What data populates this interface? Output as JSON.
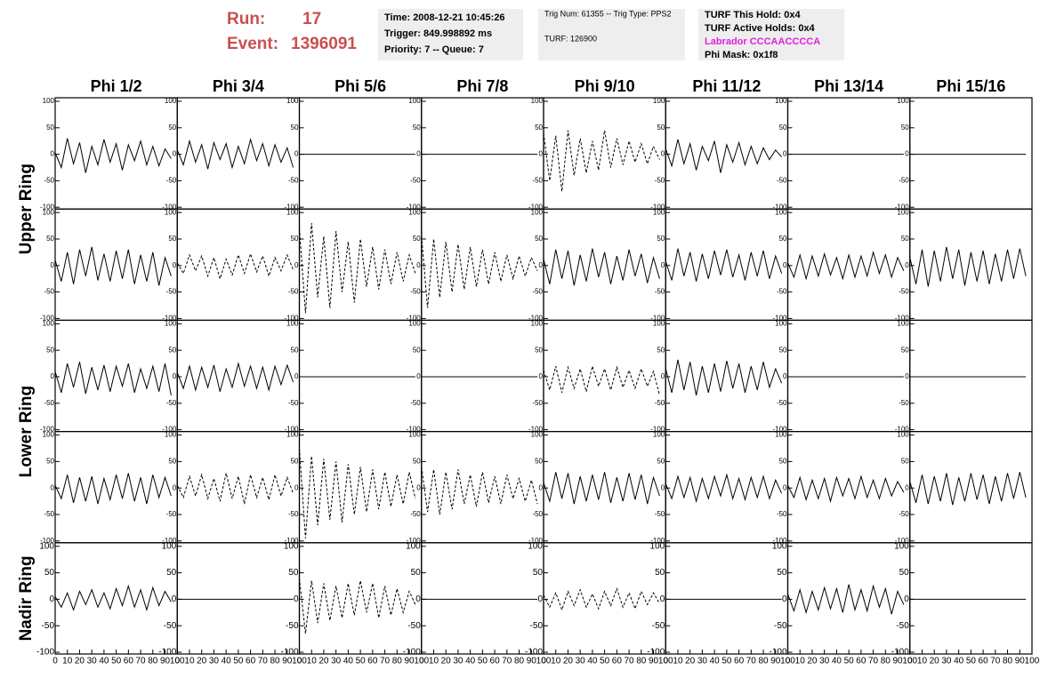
{
  "header": {
    "run_label": "Run:",
    "run": 17,
    "event_label": "Event:",
    "event": 1396091
  },
  "time_box": [
    "Time: 2008-12-21 10:45:26",
    "Trigger: 849.998892 ms",
    "Priority: 7 -- Queue: 7"
  ],
  "trig_box": [
    "Trig Num: 61355 -- Trig Type: PPS2",
    "TURF: 126900"
  ],
  "turf_box": [
    {
      "text": "TURF This Hold: 0x4",
      "color": "#000000"
    },
    {
      "text": "TURF Active Holds: 0x4",
      "color": "#000000"
    },
    {
      "text": "Labrador CCCAACCCCA",
      "color": "#e020e0"
    },
    {
      "text": "Phi Mask: 0x1f8",
      "color": "#000000"
    }
  ],
  "chart_data": {
    "type": "line",
    "columns": [
      "Phi 1/2",
      "Phi 3/4",
      "Phi 5/6",
      "Phi 7/8",
      "Phi 9/10",
      "Phi 11/12",
      "Phi 13/14",
      "Phi 15/16"
    ],
    "ring_labels": [
      "Upper Ring",
      "Lower Ring",
      "Nadir Ring"
    ],
    "xlim": [
      0,
      100
    ],
    "ylim": [
      -100,
      100
    ],
    "xticks": [
      0,
      10,
      20,
      30,
      40,
      50,
      60,
      70,
      80,
      90,
      100
    ],
    "yticks": [
      -100,
      -50,
      0,
      50,
      100
    ],
    "x": [
      0,
      5,
      10,
      15,
      20,
      25,
      30,
      35,
      40,
      45,
      50,
      55,
      60,
      65,
      70,
      75,
      80,
      85,
      90,
      95
    ],
    "panels": [
      [
        {
          "style": "solid",
          "values": [
            3,
            -25,
            30,
            -18,
            22,
            -35,
            15,
            -20,
            28,
            -15,
            20,
            -30,
            18,
            -12,
            25,
            -20,
            15,
            -22,
            10,
            -8
          ]
        },
        {
          "style": "solid",
          "values": [
            8,
            -20,
            25,
            -15,
            18,
            -28,
            22,
            -10,
            20,
            -25,
            15,
            -18,
            28,
            -12,
            20,
            -22,
            18,
            -15,
            12,
            -25
          ]
        },
        {
          "style": "solid",
          "values": [
            0,
            0,
            0,
            0,
            0,
            0,
            0,
            0,
            0,
            0,
            0,
            0,
            0,
            0,
            0,
            0,
            0,
            0,
            0,
            0
          ]
        },
        {
          "style": "solid",
          "values": [
            0,
            0,
            0,
            0,
            0,
            0,
            0,
            0,
            0,
            0,
            0,
            0,
            0,
            0,
            0,
            0,
            0,
            0,
            0,
            0
          ]
        },
        {
          "style": "dashed",
          "values": [
            40,
            -50,
            35,
            -70,
            45,
            -40,
            30,
            -35,
            25,
            -30,
            45,
            -25,
            30,
            -20,
            25,
            -15,
            20,
            -18,
            15,
            -10
          ]
        },
        {
          "style": "solid",
          "values": [
            10,
            -22,
            28,
            -18,
            20,
            -30,
            15,
            -12,
            25,
            -35,
            18,
            -15,
            22,
            -20,
            15,
            -18,
            12,
            -10,
            8,
            -5
          ]
        },
        {
          "style": "solid",
          "values": [
            0,
            0,
            0,
            0,
            0,
            0,
            0,
            0,
            0,
            0,
            0,
            0,
            0,
            0,
            0,
            0,
            0,
            0,
            0,
            0
          ]
        },
        {
          "style": "solid",
          "values": [
            0,
            0,
            0,
            0,
            0,
            0,
            0,
            0,
            0,
            0,
            0,
            0,
            0,
            0,
            0,
            0,
            0,
            0,
            0,
            0
          ]
        }
      ],
      [
        {
          "style": "solid",
          "values": [
            10,
            -30,
            25,
            -35,
            30,
            -20,
            35,
            -28,
            22,
            -30,
            28,
            -25,
            30,
            -35,
            20,
            -30,
            25,
            -38,
            15,
            -20
          ]
        },
        {
          "style": "dashed",
          "values": [
            5,
            -15,
            20,
            -10,
            18,
            -20,
            15,
            -25,
            12,
            -18,
            20,
            -15,
            22,
            -12,
            18,
            -20,
            15,
            -10,
            20,
            -8
          ]
        },
        {
          "style": "dashed",
          "values": [
            70,
            -90,
            80,
            -60,
            55,
            -80,
            65,
            -50,
            45,
            -70,
            50,
            -40,
            35,
            -45,
            30,
            -35,
            25,
            -30,
            20,
            -15
          ]
        },
        {
          "style": "dashed",
          "values": [
            55,
            -80,
            50,
            -60,
            45,
            -50,
            40,
            -45,
            35,
            -40,
            30,
            -35,
            25,
            -30,
            20,
            -25,
            18,
            -20,
            15,
            -10
          ]
        },
        {
          "style": "solid",
          "values": [
            12,
            -35,
            30,
            -25,
            28,
            -38,
            20,
            -30,
            32,
            -22,
            25,
            -35,
            18,
            -28,
            30,
            -20,
            22,
            -33,
            15,
            -25
          ]
        },
        {
          "style": "solid",
          "values": [
            8,
            -28,
            32,
            -20,
            25,
            -30,
            22,
            -25,
            28,
            -18,
            30,
            -22,
            20,
            -28,
            25,
            -20,
            28,
            -25,
            18,
            -15
          ]
        },
        {
          "style": "solid",
          "values": [
            5,
            -22,
            20,
            -25,
            18,
            -20,
            22,
            -18,
            15,
            -25,
            20,
            -22,
            18,
            -20,
            25,
            -15,
            20,
            -22,
            15,
            -10
          ]
        },
        {
          "style": "solid",
          "values": [
            15,
            -35,
            30,
            -40,
            28,
            -30,
            35,
            -25,
            30,
            -38,
            25,
            -30,
            28,
            -35,
            22,
            -30,
            30,
            -25,
            32,
            -20
          ]
        }
      ],
      [
        {
          "style": "solid",
          "values": [
            10,
            -30,
            25,
            -20,
            28,
            -32,
            18,
            -25,
            22,
            -28,
            20,
            -18,
            25,
            -30,
            15,
            -22,
            20,
            -28,
            25,
            -35
          ]
        },
        {
          "style": "solid",
          "values": [
            8,
            -22,
            20,
            -25,
            18,
            -20,
            22,
            -28,
            15,
            -20,
            25,
            -18,
            20,
            -22,
            18,
            -25,
            20,
            -15,
            22,
            -10
          ]
        },
        {
          "style": "solid",
          "values": [
            0,
            0,
            0,
            0,
            0,
            0,
            0,
            0,
            0,
            0,
            0,
            0,
            0,
            0,
            0,
            0,
            0,
            0,
            0,
            0
          ]
        },
        {
          "style": "solid",
          "values": [
            0,
            0,
            0,
            0,
            0,
            0,
            0,
            0,
            0,
            0,
            0,
            0,
            0,
            0,
            0,
            0,
            0,
            0,
            0,
            0
          ]
        },
        {
          "style": "dashed",
          "values": [
            12,
            -25,
            20,
            -30,
            18,
            -22,
            15,
            -28,
            20,
            -18,
            15,
            -25,
            18,
            -20,
            12,
            -22,
            15,
            -18,
            10,
            -35
          ]
        },
        {
          "style": "solid",
          "values": [
            15,
            -30,
            32,
            -25,
            28,
            -35,
            20,
            -30,
            25,
            -28,
            30,
            -22,
            25,
            -30,
            20,
            -25,
            28,
            -20,
            15,
            -12
          ]
        },
        {
          "style": "solid",
          "values": [
            0,
            0,
            0,
            0,
            0,
            0,
            0,
            0,
            0,
            0,
            0,
            0,
            0,
            0,
            0,
            0,
            0,
            0,
            0,
            0
          ]
        },
        {
          "style": "solid",
          "values": [
            0,
            0,
            0,
            0,
            0,
            0,
            0,
            0,
            0,
            0,
            0,
            0,
            0,
            0,
            0,
            0,
            0,
            0,
            0,
            0
          ]
        }
      ],
      [
        {
          "style": "solid",
          "values": [
            5,
            -20,
            25,
            -28,
            20,
            -25,
            22,
            -30,
            18,
            -22,
            25,
            -20,
            28,
            -25,
            20,
            -30,
            25,
            -18,
            20,
            -15
          ]
        },
        {
          "style": "dashed",
          "values": [
            5,
            -18,
            22,
            -15,
            25,
            -20,
            18,
            -25,
            28,
            -20,
            22,
            -30,
            25,
            -18,
            20,
            -22,
            25,
            -15,
            20,
            -10
          ]
        },
        {
          "style": "dashed",
          "values": [
            75,
            -95,
            60,
            -70,
            55,
            -60,
            50,
            -65,
            45,
            -50,
            40,
            -45,
            35,
            -40,
            30,
            -35,
            25,
            -30,
            30,
            -20
          ]
        },
        {
          "style": "dashed",
          "values": [
            40,
            -45,
            35,
            -50,
            30,
            -40,
            35,
            -30,
            25,
            -35,
            30,
            -28,
            22,
            -30,
            25,
            -20,
            18,
            -25,
            15,
            -30
          ]
        },
        {
          "style": "solid",
          "values": [
            10,
            -25,
            30,
            -20,
            28,
            -30,
            22,
            -25,
            25,
            -22,
            30,
            -28,
            20,
            -25,
            28,
            -22,
            25,
            -30,
            20,
            -15
          ]
        },
        {
          "style": "solid",
          "values": [
            8,
            -20,
            22,
            -18,
            20,
            -25,
            18,
            -20,
            22,
            -15,
            25,
            -20,
            18,
            -22,
            20,
            -18,
            22,
            -20,
            15,
            -10
          ]
        },
        {
          "style": "solid",
          "values": [
            5,
            -18,
            20,
            -22,
            15,
            -20,
            18,
            -25,
            20,
            -15,
            18,
            -20,
            22,
            -18,
            15,
            -20,
            18,
            -15,
            12,
            -8
          ]
        },
        {
          "style": "solid",
          "values": [
            12,
            -28,
            25,
            -30,
            22,
            -25,
            28,
            -32,
            20,
            -25,
            28,
            -22,
            25,
            -30,
            22,
            -25,
            28,
            -20,
            30,
            -18
          ]
        }
      ],
      [
        {
          "style": "solid",
          "values": [
            5,
            -15,
            12,
            -20,
            15,
            -10,
            18,
            -15,
            12,
            -18,
            20,
            -12,
            25,
            -15,
            18,
            -20,
            22,
            -12,
            15,
            -5
          ]
        },
        {
          "style": "solid",
          "values": [
            0,
            0,
            0,
            0,
            0,
            0,
            0,
            0,
            0,
            0,
            0,
            0,
            0,
            0,
            0,
            0,
            0,
            0,
            0,
            0
          ]
        },
        {
          "style": "dashed",
          "values": [
            40,
            -65,
            35,
            -45,
            30,
            -40,
            25,
            -35,
            30,
            -30,
            35,
            -25,
            30,
            -35,
            25,
            -30,
            20,
            -25,
            15,
            -10
          ]
        },
        {
          "style": "solid",
          "values": [
            0,
            0,
            0,
            0,
            0,
            0,
            0,
            0,
            0,
            0,
            0,
            0,
            0,
            0,
            0,
            0,
            0,
            0,
            0,
            0
          ]
        },
        {
          "style": "dashed",
          "values": [
            8,
            -15,
            12,
            -20,
            15,
            -12,
            18,
            -15,
            10,
            -18,
            15,
            -12,
            20,
            -15,
            12,
            -18,
            15,
            -10,
            12,
            -8
          ]
        },
        {
          "style": "solid",
          "values": [
            0,
            0,
            0,
            0,
            0,
            0,
            0,
            0,
            0,
            0,
            0,
            0,
            0,
            0,
            0,
            0,
            0,
            0,
            0,
            0
          ]
        },
        {
          "style": "solid",
          "values": [
            10,
            -22,
            18,
            -25,
            15,
            -20,
            22,
            -18,
            20,
            -25,
            28,
            -20,
            18,
            -22,
            25,
            -15,
            20,
            -28,
            15,
            -10
          ]
        },
        {
          "style": "solid",
          "values": [
            0,
            0,
            0,
            0,
            0,
            0,
            0,
            0,
            0,
            0,
            0,
            0,
            0,
            0,
            0,
            0,
            0,
            0,
            0,
            0
          ]
        }
      ]
    ]
  }
}
